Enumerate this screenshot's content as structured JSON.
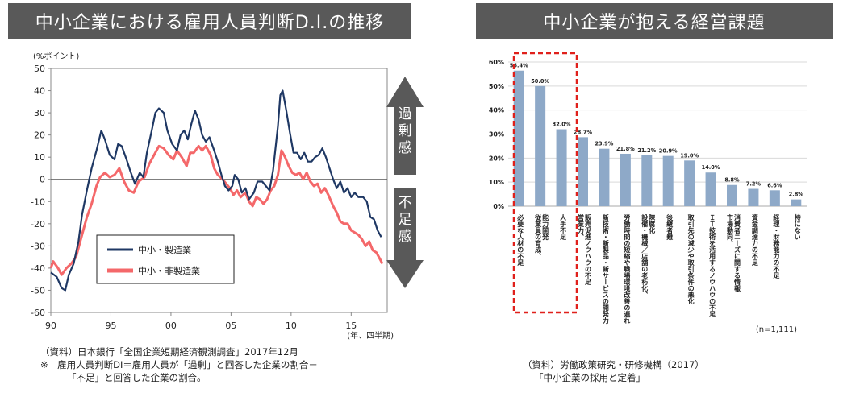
{
  "left_title": "中小企業における雇用人員判断D.I.の推移",
  "right_title": "中小企業が抱える経営課題",
  "left_source_line1": "（資料）日本銀行「全国企業短期経済観測調査」2017年12月",
  "left_note_line1": "※　雇用人員判断DI＝雇用人員が「過剰」と回答した企業の割合－",
  "left_note_line2": "「不足」と回答した企業の割合。",
  "right_source_line1": "（資料）労働政策研究・研修機構（2017）",
  "right_source_line2": "「中小企業の採用と定着」",
  "arrow_up_label": "過剰感",
  "arrow_down_label": "不足感",
  "colors": {
    "manufacturing": "#1f3864",
    "non_manufacturing": "#f4686a",
    "bar": "#8ea9c8",
    "highlight": "#e0201b",
    "banner": "#595959"
  },
  "chart_data": [
    {
      "type": "line",
      "title": "中小企業における雇用人員判断D.I.の推移",
      "ylabel": "(%ポイント)",
      "xlabel": "(年、四半期)",
      "ylim": [
        -60,
        50
      ],
      "xlim": [
        1990,
        2018
      ],
      "yticks": [
        "50",
        "40",
        "30",
        "20",
        "10",
        "0",
        "-10",
        "-20",
        "-30",
        "-40",
        "-50",
        "-60"
      ],
      "xtick_labels": [
        {
          "x": 1990,
          "label": "90"
        },
        {
          "x": 1995,
          "label": "95"
        },
        {
          "x": 2000,
          "label": "00"
        },
        {
          "x": 2005,
          "label": "05"
        },
        {
          "x": 2010,
          "label": "10"
        },
        {
          "x": 2015,
          "label": "15"
        }
      ],
      "series": [
        {
          "name": "中小・製造業",
          "points": [
            [
              1990.0,
              -42
            ],
            [
              1990.5,
              -44
            ],
            [
              1990.9,
              -49
            ],
            [
              1991.2,
              -50
            ],
            [
              1991.5,
              -43
            ],
            [
              1991.9,
              -38
            ],
            [
              1992.3,
              -28
            ],
            [
              1992.6,
              -16
            ],
            [
              1993.0,
              -5
            ],
            [
              1993.4,
              5
            ],
            [
              1993.8,
              13
            ],
            [
              1994.2,
              22
            ],
            [
              1994.5,
              18
            ],
            [
              1994.9,
              11
            ],
            [
              1995.3,
              9
            ],
            [
              1995.6,
              16
            ],
            [
              1995.9,
              15
            ],
            [
              1996.3,
              9
            ],
            [
              1996.6,
              4
            ],
            [
              1997.0,
              -2
            ],
            [
              1997.4,
              3
            ],
            [
              1997.7,
              1
            ],
            [
              1998.0,
              12
            ],
            [
              1998.4,
              22
            ],
            [
              1998.7,
              30
            ],
            [
              1999.0,
              32
            ],
            [
              1999.4,
              30
            ],
            [
              1999.7,
              22
            ],
            [
              2000.1,
              16
            ],
            [
              2000.5,
              13
            ],
            [
              2000.8,
              20
            ],
            [
              2001.1,
              22
            ],
            [
              2001.4,
              18
            ],
            [
              2001.7,
              25
            ],
            [
              2002.0,
              31
            ],
            [
              2002.3,
              27
            ],
            [
              2002.6,
              20
            ],
            [
              2002.9,
              17
            ],
            [
              2003.2,
              19
            ],
            [
              2003.6,
              13
            ],
            [
              2003.9,
              8
            ],
            [
              2004.2,
              2
            ],
            [
              2004.5,
              -3
            ],
            [
              2004.8,
              -5
            ],
            [
              2005.1,
              -3
            ],
            [
              2005.3,
              2
            ],
            [
              2005.6,
              0
            ],
            [
              2005.9,
              -6
            ],
            [
              2006.2,
              -4
            ],
            [
              2006.5,
              -9
            ],
            [
              2006.9,
              -6
            ],
            [
              2007.2,
              -1
            ],
            [
              2007.6,
              -1
            ],
            [
              2007.9,
              -3
            ],
            [
              2008.2,
              -5
            ],
            [
              2008.5,
              4
            ],
            [
              2008.9,
              24
            ],
            [
              2009.1,
              38
            ],
            [
              2009.3,
              40
            ],
            [
              2009.6,
              31
            ],
            [
              2009.9,
              21
            ],
            [
              2010.2,
              12
            ],
            [
              2010.5,
              12
            ],
            [
              2010.8,
              9
            ],
            [
              2011.1,
              12
            ],
            [
              2011.4,
              8
            ],
            [
              2011.7,
              8
            ],
            [
              2012.0,
              10
            ],
            [
              2012.3,
              11
            ],
            [
              2012.6,
              14
            ],
            [
              2012.9,
              10
            ],
            [
              2013.2,
              5
            ],
            [
              2013.5,
              0
            ],
            [
              2013.8,
              -4
            ],
            [
              2014.1,
              -1
            ],
            [
              2014.4,
              -6
            ],
            [
              2014.7,
              -4
            ],
            [
              2015.0,
              -8
            ],
            [
              2015.3,
              -6
            ],
            [
              2015.6,
              -8
            ],
            [
              2016.0,
              -8
            ],
            [
              2016.3,
              -10
            ],
            [
              2016.6,
              -17
            ],
            [
              2016.9,
              -18
            ],
            [
              2017.2,
              -23
            ],
            [
              2017.5,
              -26
            ]
          ]
        },
        {
          "name": "中小・非製造業",
          "points": [
            [
              1990.0,
              -40
            ],
            [
              1990.2,
              -37
            ],
            [
              1990.6,
              -40
            ],
            [
              1990.9,
              -43
            ],
            [
              1991.3,
              -40
            ],
            [
              1991.7,
              -38
            ],
            [
              1992.1,
              -35
            ],
            [
              1992.5,
              -27
            ],
            [
              1993.0,
              -17
            ],
            [
              1993.4,
              -11
            ],
            [
              1993.8,
              -3
            ],
            [
              1994.1,
              1
            ],
            [
              1994.5,
              3
            ],
            [
              1994.9,
              1
            ],
            [
              1995.3,
              2
            ],
            [
              1995.7,
              5
            ],
            [
              1996.1,
              -1
            ],
            [
              1996.5,
              -5
            ],
            [
              1996.9,
              -6
            ],
            [
              1997.3,
              -1
            ],
            [
              1997.8,
              1
            ],
            [
              1998.2,
              7
            ],
            [
              1998.6,
              11
            ],
            [
              1999.0,
              15
            ],
            [
              1999.4,
              14
            ],
            [
              1999.8,
              11
            ],
            [
              2000.2,
              9
            ],
            [
              2000.5,
              13
            ],
            [
              2000.9,
              10
            ],
            [
              2001.3,
              6
            ],
            [
              2001.6,
              12
            ],
            [
              2001.9,
              12
            ],
            [
              2002.3,
              15
            ],
            [
              2002.6,
              13
            ],
            [
              2002.9,
              15
            ],
            [
              2003.3,
              11
            ],
            [
              2003.6,
              5
            ],
            [
              2003.9,
              2
            ],
            [
              2004.3,
              0
            ],
            [
              2004.6,
              -2
            ],
            [
              2004.9,
              -4
            ],
            [
              2005.2,
              -7
            ],
            [
              2005.5,
              -5
            ],
            [
              2005.8,
              -8
            ],
            [
              2006.2,
              -6
            ],
            [
              2006.5,
              -10
            ],
            [
              2006.8,
              -12
            ],
            [
              2007.1,
              -8
            ],
            [
              2007.4,
              -9
            ],
            [
              2007.7,
              -11
            ],
            [
              2008.0,
              -9
            ],
            [
              2008.3,
              -5
            ],
            [
              2008.6,
              -3
            ],
            [
              2008.9,
              2
            ],
            [
              2009.2,
              13
            ],
            [
              2009.5,
              10
            ],
            [
              2009.8,
              6
            ],
            [
              2010.1,
              3
            ],
            [
              2010.4,
              2
            ],
            [
              2010.7,
              3
            ],
            [
              2011.0,
              0
            ],
            [
              2011.3,
              3
            ],
            [
              2011.6,
              -1
            ],
            [
              2011.9,
              -3
            ],
            [
              2012.2,
              -2
            ],
            [
              2012.5,
              -6
            ],
            [
              2012.8,
              -4
            ],
            [
              2013.1,
              -7
            ],
            [
              2013.5,
              -12
            ],
            [
              2013.8,
              -15
            ],
            [
              2014.1,
              -19
            ],
            [
              2014.4,
              -20
            ],
            [
              2014.7,
              -20
            ],
            [
              2015.0,
              -23
            ],
            [
              2015.3,
              -24
            ],
            [
              2015.6,
              -25
            ],
            [
              2015.9,
              -27
            ],
            [
              2016.2,
              -30
            ],
            [
              2016.5,
              -28
            ],
            [
              2016.8,
              -32
            ],
            [
              2017.1,
              -33
            ],
            [
              2017.4,
              -36
            ],
            [
              2017.6,
              -38
            ]
          ]
        }
      ],
      "legend": [
        "中小・製造業",
        "中小・非製造業"
      ]
    },
    {
      "type": "bar",
      "title": "中小企業が抱える経営課題",
      "ylim": [
        0,
        60
      ],
      "yticks": [
        "0%",
        "10%",
        "20%",
        "30%",
        "40%",
        "50%",
        "60%"
      ],
      "n_label": "(n=1,111)",
      "categories": [
        "必要な人材の不足",
        "従業員の育成、能力開発",
        "人手不足",
        "営業力、販売促進ノウハウの不足",
        "新技術・新製品・新サービスの開発力",
        "労働時間の短縮や職場環境改善の遅れ",
        "設備・機械／店舗の老朽化、陳腐化",
        "後継者難",
        "取引先の減少や取引条件の悪化",
        "ＩＴ技術を活用するノウハウの不足",
        "市場動向、消費者ニーズに関する情報",
        "資金調達力の不足",
        "経理・財務能力の不足",
        "特にない"
      ],
      "values": [
        56.4,
        50.0,
        32.0,
        28.7,
        23.9,
        21.8,
        21.2,
        20.9,
        19.0,
        14.0,
        8.8,
        7.2,
        6.6,
        2.8
      ],
      "value_labels": [
        "56.4%",
        "50.0%",
        "32.0%",
        "28.7%",
        "23.9%",
        "21.8%",
        "21.2%",
        "20.9%",
        "19.0%",
        "14.0%",
        "8.8%",
        "7.2%",
        "6.6%",
        "2.8%"
      ],
      "highlighted_categories": [
        "必要な人材の不足",
        "従業員の育成、能力開発",
        "人手不足"
      ]
    }
  ]
}
